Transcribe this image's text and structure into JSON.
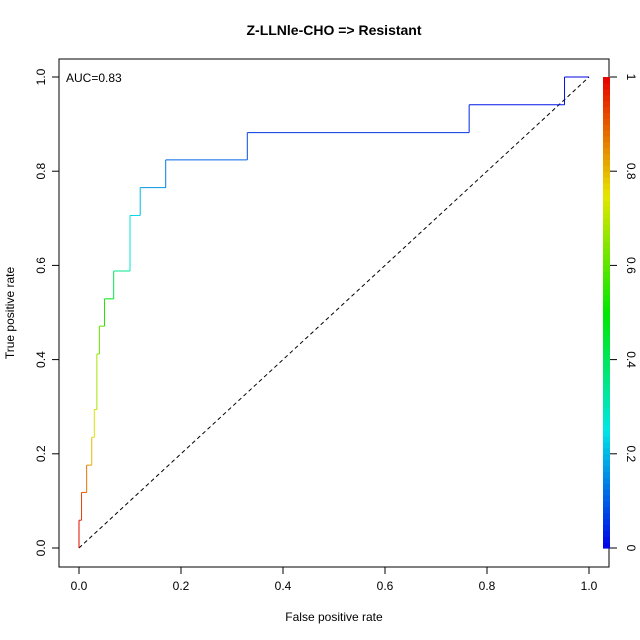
{
  "chart_data": {
    "type": "line",
    "title": "Z-LLNle-CHO => Resistant",
    "xlabel": "False positive rate",
    "ylabel": "True positive rate",
    "xlim": [
      0,
      1
    ],
    "ylim": [
      0,
      1
    ],
    "x_ticks": [
      "0.0",
      "0.2",
      "0.4",
      "0.6",
      "0.8",
      "1.0"
    ],
    "y_ticks": [
      "0.0",
      "0.2",
      "0.4",
      "0.6",
      "0.8",
      "1.0"
    ],
    "annotation": "AUC=0.83",
    "colorbar": {
      "ticks": [
        "0",
        "0.2",
        "0.4",
        "0.6",
        "0.8",
        "1"
      ],
      "range": [
        0,
        1
      ],
      "colormap": "rainbow"
    },
    "diagonal_reference": true,
    "grid": false,
    "roc_curve": {
      "x": [
        0,
        0,
        0.005,
        0.005,
        0.015,
        0.015,
        0.025,
        0.025,
        0.03,
        0.03,
        0.035,
        0.035,
        0.04,
        0.04,
        0.05,
        0.05,
        0.068,
        0.068,
        0.1,
        0.1,
        0.12,
        0.12,
        0.17,
        0.17,
        0.33,
        0.33,
        0.765,
        0.765,
        0.952,
        0.952,
        1.0
      ],
      "y": [
        0,
        0.059,
        0.059,
        0.118,
        0.118,
        0.176,
        0.176,
        0.235,
        0.235,
        0.294,
        0.294,
        0.412,
        0.412,
        0.471,
        0.471,
        0.529,
        0.529,
        0.588,
        0.588,
        0.706,
        0.706,
        0.765,
        0.765,
        0.824,
        0.824,
        0.882,
        0.882,
        0.941,
        0.941,
        1.0,
        1.0
      ],
      "cutoff": [
        1.0,
        0.98,
        0.95,
        0.92,
        0.9,
        0.85,
        0.82,
        0.78,
        0.75,
        0.72,
        0.7,
        0.66,
        0.64,
        0.6,
        0.58,
        0.5,
        0.45,
        0.4,
        0.3,
        0.25,
        0.22,
        0.18,
        0.15,
        0.12,
        0.1,
        0.07,
        0.05,
        0.03,
        0.02,
        0.01,
        0.0
      ]
    }
  }
}
